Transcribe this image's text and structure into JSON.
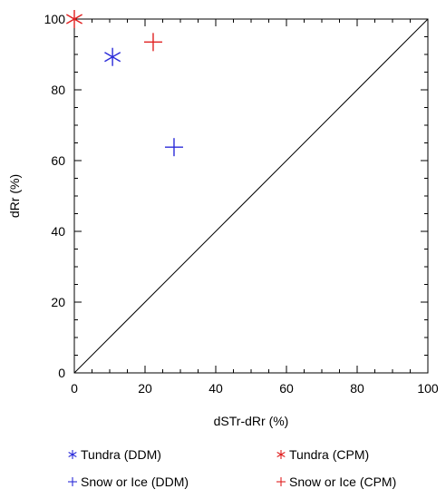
{
  "chart_data": {
    "type": "scatter",
    "xlabel": "dSTr-dRr (%)",
    "ylabel": "dRr (%)",
    "xlim": [
      0,
      100
    ],
    "ylim": [
      0,
      100
    ],
    "x_ticks": [
      "0",
      "20",
      "40",
      "60",
      "80",
      "100"
    ],
    "y_ticks": [
      "0",
      "20",
      "40",
      "60",
      "80",
      "100"
    ],
    "grid": false,
    "reference_line": {
      "from": [
        0,
        0
      ],
      "to": [
        100,
        100
      ],
      "color": "#000000"
    },
    "legend_position": "bottom",
    "series": [
      {
        "name": "Tundra (DDM)",
        "marker": "asterisk",
        "color": "#2b2bd9",
        "x": [
          10.8
        ],
        "y": [
          89.3
        ]
      },
      {
        "name": "Tundra (CPM)",
        "marker": "asterisk",
        "color": "#e02020",
        "x": [
          0.0
        ],
        "y": [
          100.0
        ]
      },
      {
        "name": "Snow or Ice (DDM)",
        "marker": "plus",
        "color": "#2b2bd9",
        "x": [
          28.2
        ],
        "y": [
          63.8
        ]
      },
      {
        "name": "Snow or Ice (CPM)",
        "marker": "plus",
        "color": "#e02020",
        "x": [
          22.3
        ],
        "y": [
          93.5
        ]
      }
    ]
  }
}
